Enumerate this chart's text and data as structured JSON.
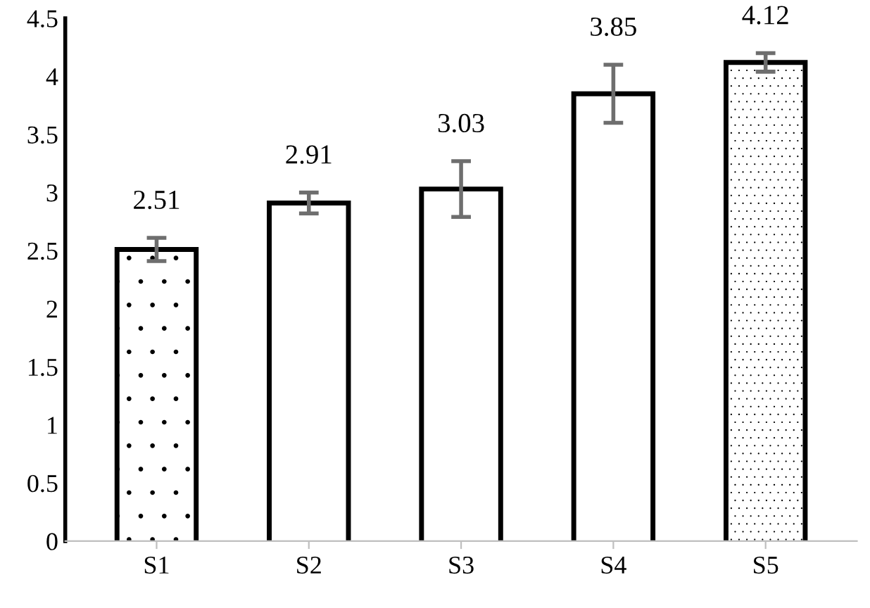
{
  "chart_data": {
    "type": "bar",
    "categories": [
      "S1",
      "S2",
      "S3",
      "S4",
      "S5"
    ],
    "values": [
      2.51,
      2.91,
      3.03,
      3.85,
      4.12
    ],
    "errors": [
      0.1,
      0.09,
      0.24,
      0.25,
      0.08
    ],
    "color": "#ffffff",
    "data_labels": true,
    "ylim": [
      0,
      4.5
    ],
    "yticks": [
      0,
      0.5,
      1,
      1.5,
      2,
      2.5,
      3,
      3.5,
      4,
      4.5
    ],
    "grid": false,
    "legend": false
  }
}
